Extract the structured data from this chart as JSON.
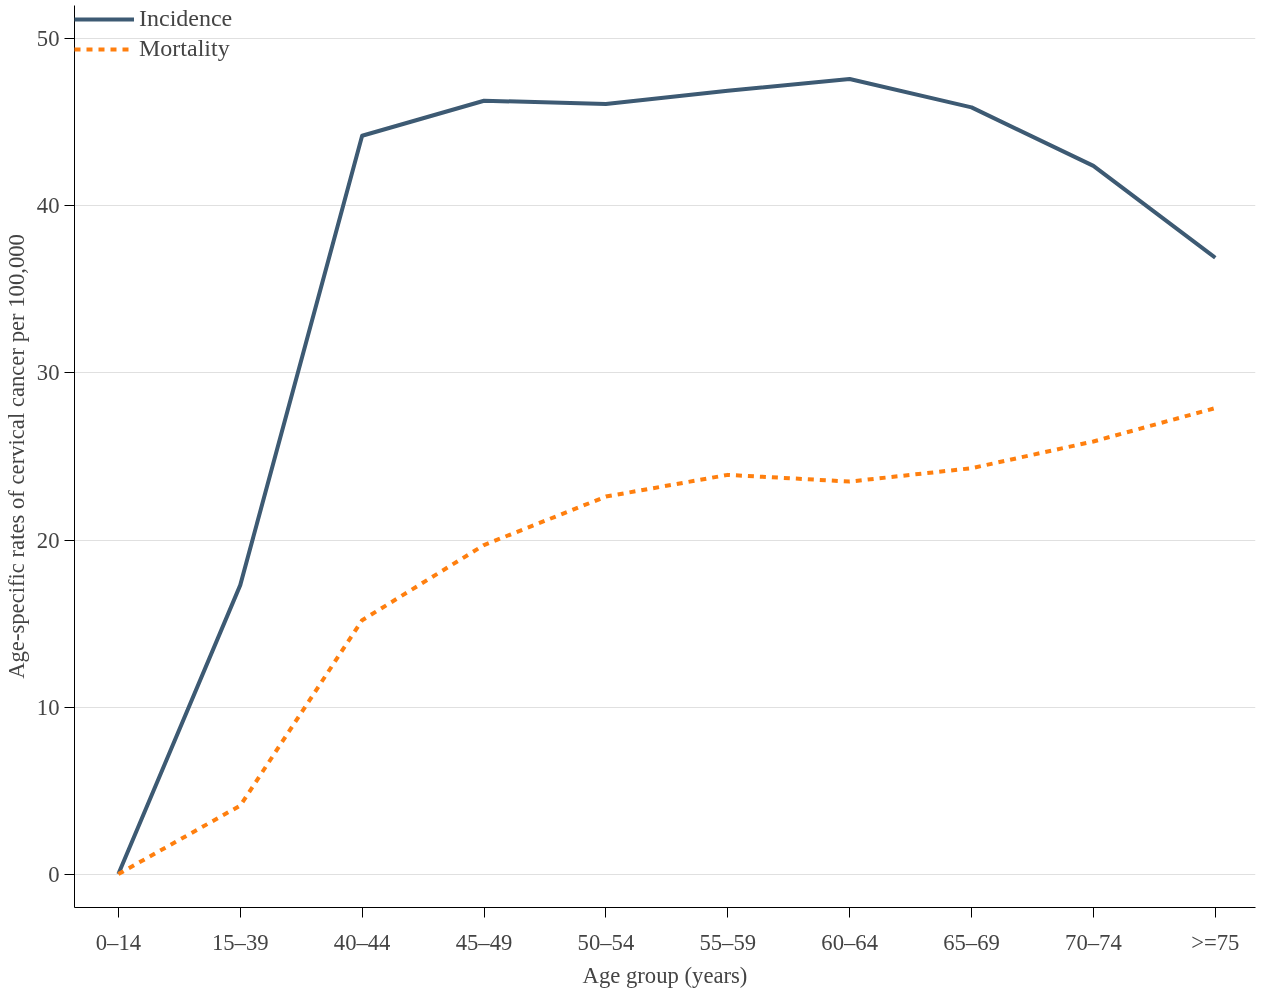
{
  "chart_data": {
    "type": "line",
    "xlabel": "Age group (years)",
    "ylabel": "Age-specific rates of cervical cancer per 100,000",
    "categories": [
      "0–14",
      "15–39",
      "40–44",
      "45–49",
      "50–54",
      "55–59",
      "60–64",
      "65–69",
      "70–74",
      ">=75"
    ],
    "series": [
      {
        "name": "Incidence",
        "color": "#3d5a73",
        "line_style": "solid",
        "values": [
          0,
          17.3,
          44.2,
          46.3,
          46.1,
          46.9,
          47.6,
          45.9,
          42.4,
          36.9
        ]
      },
      {
        "name": "Mortality",
        "color": "#ff7f0e",
        "line_style": "dashed",
        "values": [
          0,
          4.1,
          15.2,
          19.7,
          22.6,
          23.9,
          23.5,
          24.3,
          25.9,
          27.9
        ]
      }
    ],
    "ylim": [
      -2,
      52
    ],
    "yticks": [
      0,
      10,
      20,
      30,
      40,
      50
    ],
    "grid": "y",
    "legend": "top left"
  }
}
